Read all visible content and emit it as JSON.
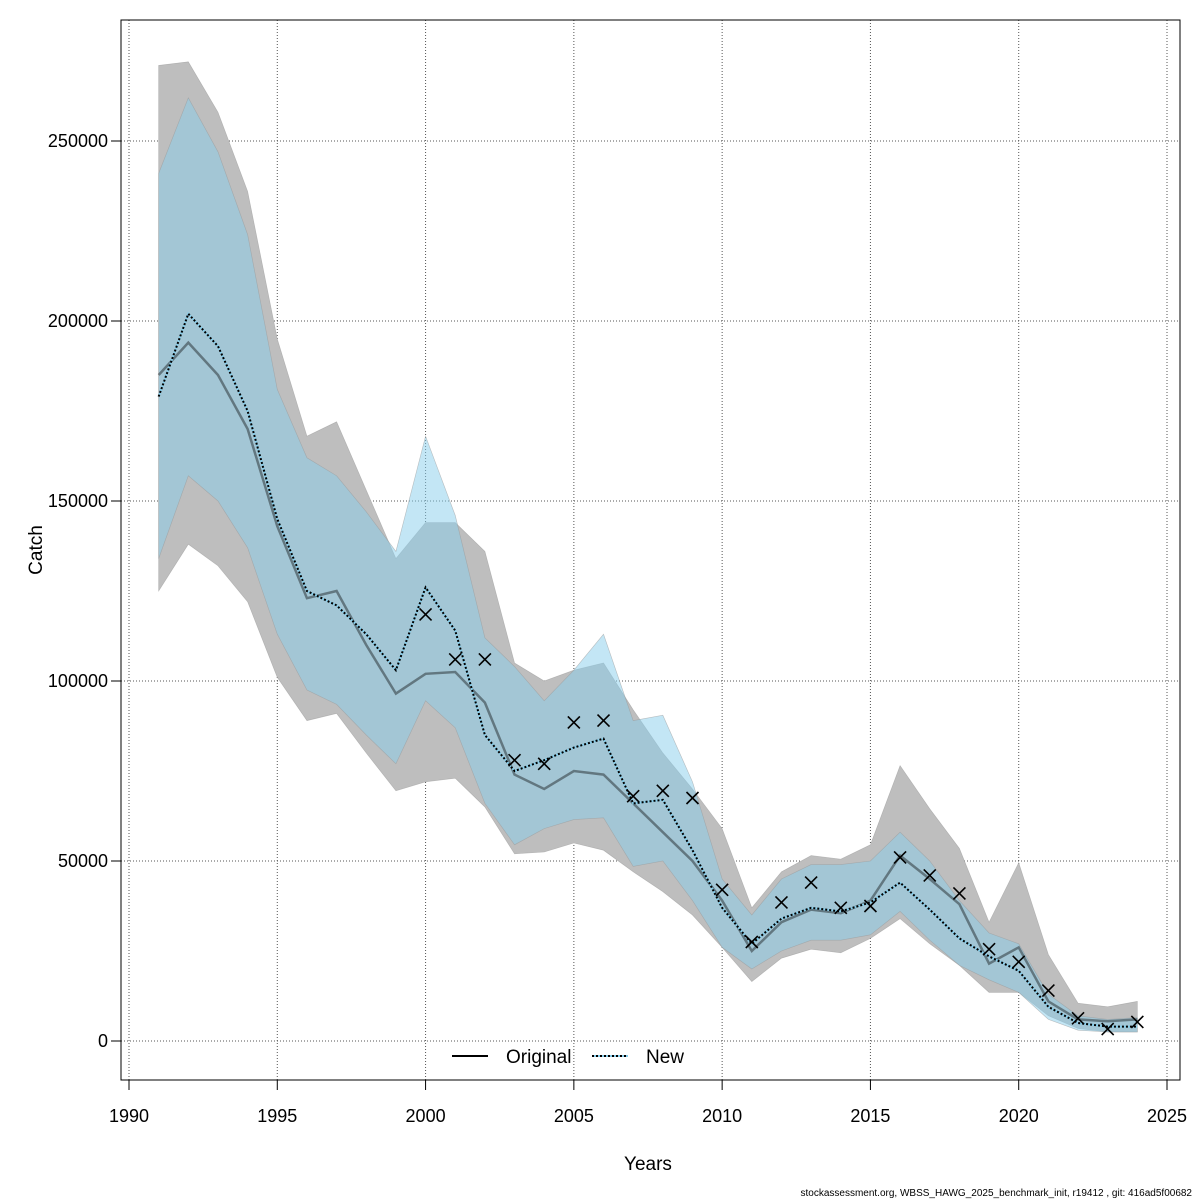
{
  "chart_data": {
    "type": "line",
    "title": "",
    "xlabel": "Years",
    "ylabel": "Catch",
    "xlim": [
      1990,
      2025
    ],
    "ylim": [
      0,
      270000
    ],
    "x_ticks": [
      1990,
      1995,
      2000,
      2005,
      2010,
      2015,
      2020,
      2025
    ],
    "y_ticks": [
      0,
      50000,
      100000,
      150000,
      200000,
      250000
    ],
    "grid": true,
    "legend_placement": "bottom",
    "x": [
      1991,
      1992,
      1993,
      1994,
      1995,
      1996,
      1997,
      1998,
      1999,
      2000,
      2001,
      2002,
      2003,
      2004,
      2005,
      2006,
      2007,
      2008,
      2009,
      2010,
      2011,
      2012,
      2013,
      2014,
      2015,
      2016,
      2017,
      2018,
      2019,
      2020,
      2021,
      2022,
      2023,
      2024
    ],
    "series": [
      {
        "name": "Original",
        "style": "solid",
        "color": "#000000",
        "band_color": "#bebebe",
        "values": [
          185000,
          194000,
          185000,
          170000,
          143000,
          123000,
          125000,
          110000,
          96500,
          102000,
          102500,
          94000,
          74000,
          70000,
          75000,
          74000,
          66000,
          58000,
          50000,
          39000,
          25000,
          33000,
          36500,
          35500,
          39000,
          51500,
          45000,
          38000,
          21500,
          26000,
          11000,
          6000,
          5500,
          6000
        ],
        "upper": [
          271000,
          272000,
          258000,
          236000,
          195000,
          168000,
          172000,
          153000,
          134000,
          144000,
          144000,
          136000,
          105000,
          100000,
          103000,
          105000,
          92000,
          80000,
          70000,
          59000,
          37000,
          47000,
          51500,
          50500,
          54500,
          76500,
          64500,
          53500,
          33000,
          49500,
          24000,
          10500,
          9500,
          11000
        ],
        "lower": [
          125000,
          138000,
          132000,
          122000,
          101000,
          89000,
          91000,
          80000,
          69500,
          72000,
          73000,
          65000,
          52000,
          52500,
          55000,
          53000,
          47000,
          41500,
          35000,
          26000,
          16500,
          23000,
          25500,
          24500,
          28500,
          34000,
          27000,
          21000,
          13500,
          13500,
          7000,
          3500,
          2500,
          2500
        ]
      },
      {
        "name": "New",
        "style": "dotted",
        "color": "#000000",
        "band_color": "#87ceeb",
        "values": [
          179000,
          202000,
          193000,
          175000,
          145000,
          125000,
          121000,
          113000,
          103000,
          126000,
          114000,
          85000,
          75000,
          78000,
          81500,
          84000,
          66000,
          67000,
          53000,
          37000,
          27000,
          34000,
          37000,
          36000,
          38500,
          44000,
          36500,
          28500,
          23500,
          19500,
          9500,
          5000,
          4000,
          4000
        ],
        "upper": [
          241000,
          262000,
          247000,
          224000,
          181000,
          162000,
          157000,
          147000,
          136000,
          168000,
          146000,
          112000,
          104000,
          94500,
          103000,
          113000,
          89000,
          90500,
          72000,
          45000,
          35000,
          45000,
          49000,
          49000,
          50000,
          58000,
          50000,
          39000,
          30000,
          27000,
          13000,
          7000,
          6000,
          6500
        ],
        "lower": [
          134000,
          157000,
          150000,
          137000,
          113000,
          97500,
          93500,
          85000,
          77000,
          94500,
          87000,
          66000,
          54500,
          59000,
          61500,
          62000,
          48500,
          50000,
          39000,
          26000,
          20000,
          25000,
          28000,
          28000,
          29500,
          36000,
          28000,
          21000,
          17000,
          13500,
          6000,
          3000,
          2500,
          2500
        ]
      }
    ],
    "observations": {
      "marker": "x",
      "x": [
        2000,
        2001,
        2002,
        2003,
        2004,
        2005,
        2006,
        2007,
        2008,
        2009,
        2010,
        2011,
        2012,
        2013,
        2014,
        2015,
        2016,
        2017,
        2018,
        2019,
        2020,
        2021,
        2022,
        2023,
        2024
      ],
      "values": [
        118500,
        106000,
        106000,
        78000,
        77000,
        88500,
        89000,
        68000,
        69500,
        67500,
        42000,
        27500,
        38500,
        44000,
        37000,
        37500,
        51000,
        46000,
        41000,
        25500,
        22000,
        14000,
        6300,
        3300,
        5300
      ]
    },
    "footer": "stockassessment.org, WBSS_HAWG_2025_benchmark_init, r19412 , git: 416ad5f00682"
  }
}
